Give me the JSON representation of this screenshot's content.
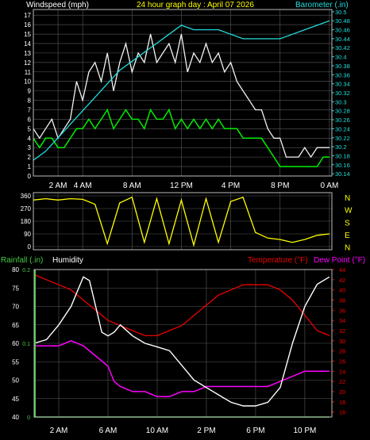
{
  "colors": {
    "background": "#000000",
    "grid": "#5a5a5a",
    "windspeed_label": "#ffffff",
    "gust": "#f2f2f2",
    "average": "#00ee00",
    "barometer": "#22dddd",
    "title": "#ffff00",
    "direction": "#ffff00",
    "rain": "#44cc44",
    "humidity": "#ffffff",
    "temperature": "#ee0000",
    "dew_point": "#ff00ff",
    "axis_text": "#ffffff"
  },
  "chart_data": [
    {
      "type": "line",
      "title": "24 hour graph day : April 07 2026",
      "left_axis_label": "Windspeed (mph)",
      "right_axis_label": "Barometer (.in)",
      "left_ticks": [
        "0",
        "1",
        "2",
        "3",
        "4",
        "5",
        "6",
        "7",
        "8",
        "9",
        "10",
        "11",
        "12",
        "13",
        "14",
        "15",
        "16",
        "17"
      ],
      "right_ticks": [
        "30.14",
        "30.16",
        "30.18",
        "30.2",
        "30.22",
        "30.24",
        "30.26",
        "30.28",
        "30.3",
        "30.32",
        "30.34",
        "30.36",
        "30.38",
        "30.4",
        "30.42",
        "30.44",
        "30.46",
        "30.48",
        "30.5"
      ],
      "x_ticks": [
        "2 AM",
        "4 AM",
        "8 AM",
        "12 PM",
        "4 PM",
        "8 PM",
        "0 AM"
      ],
      "x_tick_hours": [
        2,
        4,
        8,
        12,
        16,
        20,
        24
      ],
      "ylim_left": [
        0,
        17.6
      ],
      "ylim_right": [
        30.135,
        30.505
      ],
      "xlim_hours": [
        0,
        24.2
      ],
      "series": [
        {
          "axis": "right",
          "x": [
            0,
            1,
            2,
            3,
            4,
            5,
            6,
            7,
            8,
            9,
            10,
            11,
            12,
            13,
            14,
            15,
            16,
            17,
            18,
            19,
            20,
            21,
            22,
            23,
            24
          ],
          "values": [
            30.17,
            30.19,
            30.22,
            30.25,
            30.28,
            30.31,
            30.34,
            30.37,
            30.39,
            30.41,
            30.43,
            30.45,
            30.47,
            30.46,
            30.46,
            30.46,
            30.45,
            30.44,
            30.44,
            30.44,
            30.44,
            30.45,
            30.46,
            30.47,
            30.48
          ]
        },
        {
          "name": "gust",
          "axis": "left",
          "x": [
            0,
            0.5,
            1,
            1.5,
            2,
            2.5,
            3,
            3.5,
            4,
            4.5,
            5,
            5.5,
            6,
            6.5,
            7,
            7.5,
            8,
            8.5,
            9,
            9.5,
            10,
            10.5,
            11,
            11.5,
            12,
            12.5,
            13,
            13.5,
            14,
            14.5,
            15,
            15.5,
            16,
            16.5,
            17,
            17.5,
            18,
            18.5,
            19,
            19.5,
            20,
            20.5,
            21,
            21.5,
            22,
            22.5,
            23,
            23.5,
            24
          ],
          "values": [
            5,
            4,
            5,
            6,
            4,
            5,
            6,
            10,
            8,
            11,
            12,
            10,
            13,
            9,
            12,
            14,
            11,
            13,
            12,
            15,
            12,
            13,
            14,
            12,
            15,
            11,
            13,
            12,
            14,
            12,
            13,
            11,
            12,
            10,
            9,
            8,
            7,
            7,
            5,
            4,
            4,
            2,
            2,
            2,
            3,
            2,
            3,
            3,
            3
          ]
        },
        {
          "name": "average",
          "axis": "left",
          "x": [
            0,
            0.5,
            1,
            1.5,
            2,
            2.5,
            3,
            3.5,
            4,
            4.5,
            5,
            5.5,
            6,
            6.5,
            7,
            7.5,
            8,
            8.5,
            9,
            9.5,
            10,
            10.5,
            11,
            11.5,
            12,
            12.5,
            13,
            13.5,
            14,
            14.5,
            15,
            15.5,
            16,
            16.5,
            17,
            17.5,
            18,
            18.5,
            19,
            19.5,
            20,
            20.5,
            21,
            21.5,
            22,
            22.5,
            23,
            23.5,
            24
          ],
          "values": [
            4,
            3,
            4,
            4,
            3,
            3,
            4,
            5,
            5,
            6,
            5,
            6,
            7,
            5,
            6,
            7,
            6,
            6,
            5,
            7,
            6,
            6,
            7,
            5,
            6,
            5,
            6,
            5,
            6,
            5,
            6,
            5,
            5,
            5,
            4,
            4,
            4,
            4,
            3,
            2,
            1,
            1,
            1,
            1,
            1,
            1,
            1,
            2,
            2
          ]
        }
      ]
    },
    {
      "type": "line",
      "y_ticks": [
        "360",
        "270",
        "180",
        "90",
        "0"
      ],
      "right_labels": [
        "N",
        "W",
        "S",
        "E",
        "N"
      ],
      "ylim": [
        0,
        360
      ],
      "xlim_hours": [
        0,
        24.2
      ],
      "series": [
        {
          "name": "direction",
          "x": [
            0,
            1,
            2,
            3,
            4,
            5,
            6,
            7,
            8,
            9,
            10,
            11,
            12,
            13,
            14,
            15,
            16,
            17,
            18,
            19,
            20,
            21,
            22,
            23,
            24
          ],
          "values": [
            330,
            340,
            330,
            340,
            335,
            300,
            20,
            310,
            350,
            30,
            340,
            20,
            330,
            10,
            340,
            30,
            320,
            350,
            100,
            60,
            50,
            30,
            50,
            80,
            90
          ]
        }
      ]
    },
    {
      "type": "line",
      "left_axis_label": "Humidity",
      "rain_label": "Rainfall (.in)",
      "temperature_label": "Temperature (°F)",
      "dew_point_label": "Dew Point (°F)",
      "left_ticks": [
        "40",
        "45",
        "50",
        "55",
        "60",
        "65",
        "70",
        "75",
        "80"
      ],
      "rain_ticks": [
        "0",
        "0.1",
        "0.2"
      ],
      "right_ticks": [
        "16",
        "18",
        "20",
        "22",
        "24",
        "26",
        "28",
        "30",
        "32",
        "34",
        "36",
        "38",
        "40",
        "42",
        "44"
      ],
      "x_ticks": [
        "2 AM",
        "6 AM",
        "10 AM",
        "2 PM",
        "6 PM",
        "10 PM"
      ],
      "x_tick_hours": [
        2,
        6,
        10,
        14,
        18,
        22
      ],
      "ylim_left": [
        40,
        80
      ],
      "ylim_right": [
        15,
        44
      ],
      "xlim_hours": [
        0,
        24.2
      ],
      "series": [
        {
          "name": "humidity",
          "axis": "left",
          "x": [
            0,
            1,
            2,
            3,
            4,
            4.5,
            5,
            5.5,
            6,
            6.5,
            7,
            8,
            9,
            10,
            11,
            12,
            13,
            14,
            15,
            16,
            17,
            18,
            19,
            20,
            21,
            22,
            23,
            24
          ],
          "values": [
            60,
            61,
            65,
            70,
            78,
            77,
            70,
            63,
            62,
            63,
            65,
            62,
            60,
            59,
            58,
            54,
            50,
            48,
            46,
            44,
            43,
            43,
            44,
            48,
            60,
            70,
            76,
            78
          ]
        },
        {
          "name": "temperature",
          "axis": "right",
          "x": [
            0,
            1,
            2,
            3,
            4,
            5,
            6,
            7,
            8,
            9,
            10,
            11,
            12,
            13,
            14,
            15,
            16,
            17,
            18,
            19,
            20,
            21,
            22,
            23,
            24
          ],
          "values": [
            43,
            42,
            41,
            40,
            38,
            36,
            34,
            33,
            32,
            31,
            31,
            32,
            33,
            35,
            37,
            39,
            40,
            41,
            41,
            41,
            40,
            38,
            35,
            32,
            31
          ]
        },
        {
          "name": "dew_point",
          "axis": "right",
          "x": [
            0,
            1,
            2,
            3,
            4,
            5,
            6,
            6.5,
            7,
            8,
            9,
            10,
            11,
            12,
            13,
            14,
            15,
            16,
            17,
            18,
            19,
            20,
            21,
            22,
            23,
            24
          ],
          "values": [
            29,
            29,
            29,
            30,
            29,
            27,
            25,
            22,
            21,
            20,
            20,
            19,
            19,
            20,
            20,
            21,
            21,
            21,
            21,
            21,
            21,
            22,
            23,
            24,
            24,
            24
          ]
        },
        {
          "name": "rainfall",
          "axis": "rain",
          "x": [
            0,
            24
          ],
          "values": [
            0,
            0
          ]
        }
      ]
    }
  ]
}
